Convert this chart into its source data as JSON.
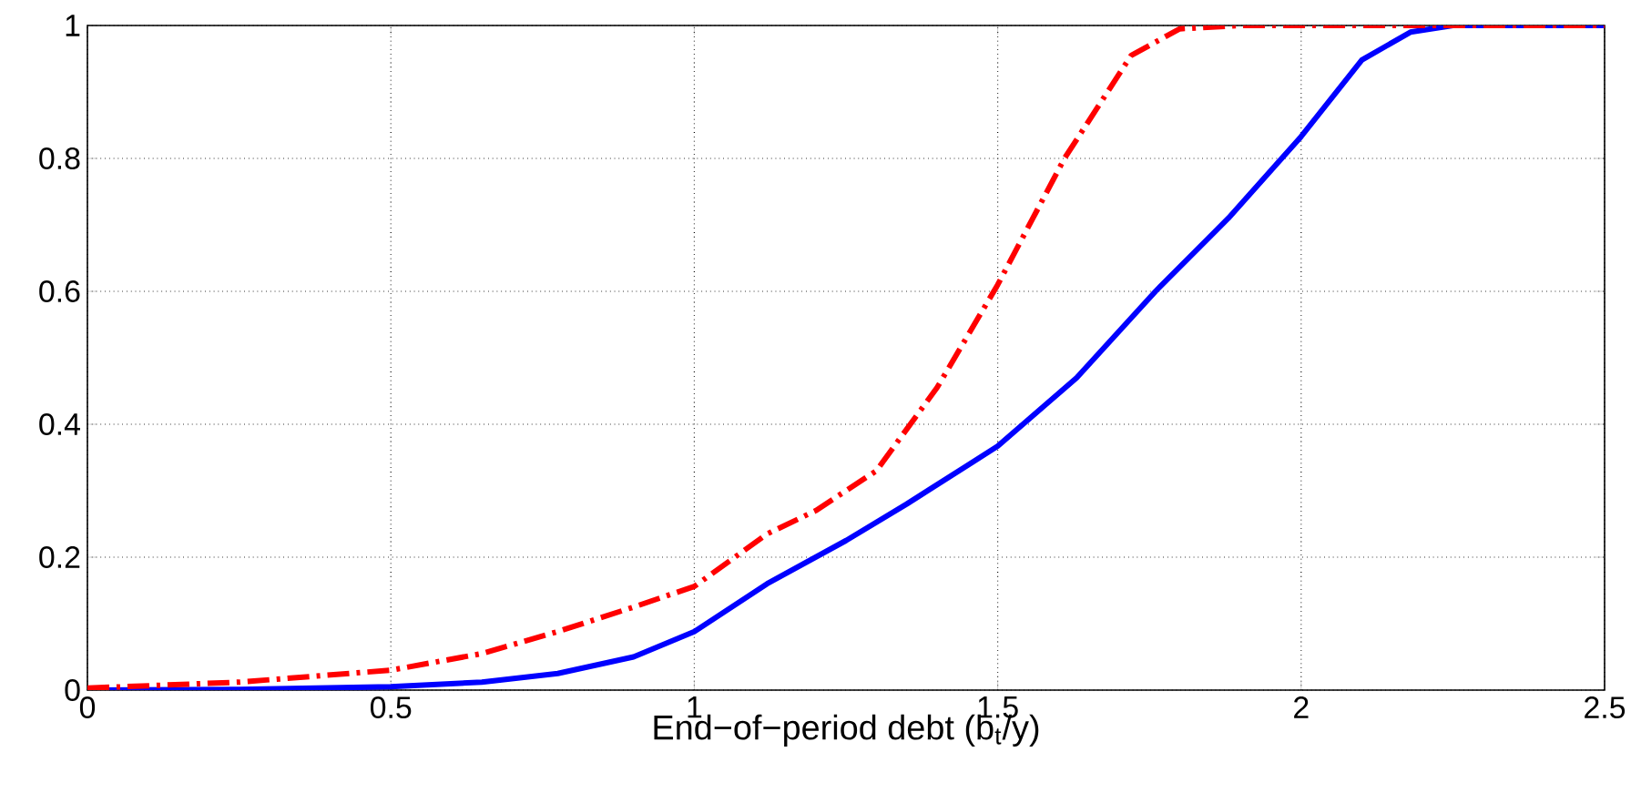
{
  "chart_data": {
    "type": "line",
    "xlabel": "End−of−period debt (b$_{t}$/y)",
    "xlim": [
      0,
      2.5
    ],
    "ylim": [
      0,
      1
    ],
    "xticks": [
      0,
      0.5,
      1,
      1.5,
      2,
      2.5
    ],
    "yticks": [
      0,
      0.2,
      0.4,
      0.6,
      0.8,
      1
    ],
    "grid": true,
    "marker": "none",
    "series": [
      {
        "color": "#0000ff",
        "line_style": "solid",
        "x": [
          0,
          0.25,
          0.5,
          0.65,
          0.775,
          0.9,
          1.0,
          1.12,
          1.25,
          1.35,
          1.5,
          1.63,
          1.76,
          1.88,
          2.0,
          2.1,
          2.18,
          2.25,
          2.5
        ],
        "values": [
          0,
          0.001,
          0.005,
          0.012,
          0.025,
          0.05,
          0.088,
          0.16,
          0.225,
          0.28,
          0.367,
          0.47,
          0.6,
          0.71,
          0.833,
          0.948,
          0.99,
          1.0,
          1.0
        ]
      },
      {
        "color": "#ff0000",
        "line_style": "dashdot",
        "x": [
          0,
          0.25,
          0.5,
          0.65,
          0.775,
          0.9,
          1.0,
          1.12,
          1.2,
          1.3,
          1.4,
          1.5,
          1.61,
          1.72,
          1.8,
          1.9,
          2.5
        ],
        "values": [
          0.003,
          0.012,
          0.03,
          0.055,
          0.088,
          0.125,
          0.156,
          0.235,
          0.27,
          0.33,
          0.455,
          0.61,
          0.8,
          0.955,
          0.995,
          1.0,
          1.0
        ]
      }
    ]
  }
}
